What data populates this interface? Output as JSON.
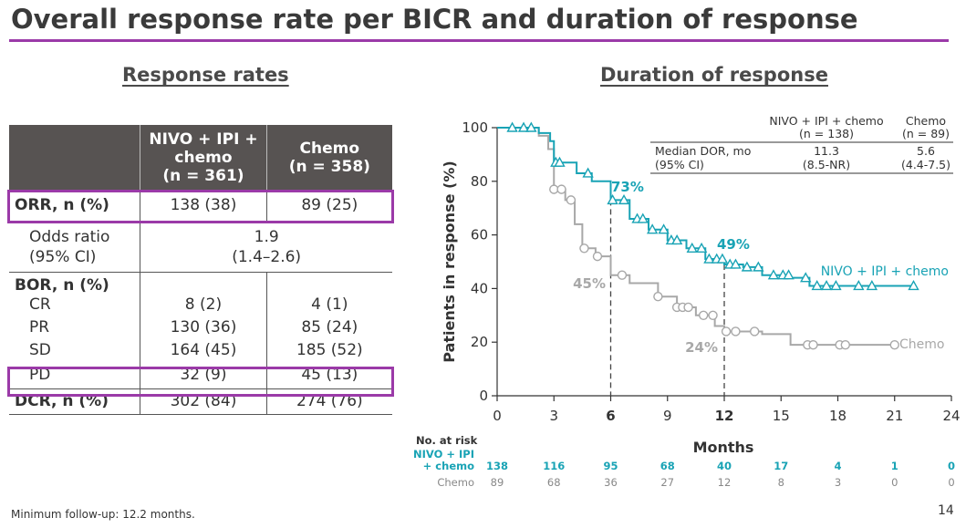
{
  "title": "Overall response rate per BICR and duration of response",
  "response_rates": {
    "heading": "Response rates",
    "header": {
      "col1": [
        "NIVO + IPI +",
        "chemo",
        "(n = 361)"
      ],
      "col2": [
        "Chemo",
        "(n = 358)"
      ]
    },
    "orr": {
      "label": "ORR, n (%)",
      "nivo": "138 (38)",
      "chemo": "89 (25)"
    },
    "odds_ratio": {
      "label1": "Odds ratio",
      "label2": "(95% CI)",
      "value1": "1.9",
      "value2": "(1.4–2.6)"
    },
    "bor": {
      "label": "BOR, n (%)",
      "rows": [
        {
          "label": "CR",
          "nivo": "8 (2)",
          "chemo": "4 (1)"
        },
        {
          "label": "PR",
          "nivo": "130 (36)",
          "chemo": "85 (24)"
        },
        {
          "label": "SD",
          "nivo": "164 (45)",
          "chemo": "185 (52)"
        },
        {
          "label": "PD",
          "nivo": "32 (9)",
          "chemo": "45 (13)"
        }
      ]
    },
    "dcr": {
      "label": "DCR, n (%)",
      "nivo": "302 (84)",
      "chemo": "274 (76)"
    }
  },
  "duration_of_response": {
    "heading": "Duration of response",
    "inset": {
      "col1": [
        "NIVO + IPI + chemo",
        "(n = 138)"
      ],
      "col2": [
        "Chemo",
        "(n = 89)"
      ],
      "row_label1": "Median DOR, mo",
      "row_label2": "(95% CI)",
      "nivo1": "11.3",
      "nivo2": "(8.5-NR)",
      "chemo1": "5.6",
      "chemo2": "(4.4-7.5)"
    },
    "annotations": {
      "nivo_6": "73%",
      "nivo_12": "49%",
      "chemo_6": "45%",
      "chemo_12": "24%"
    },
    "risk": {
      "title": "No. at risk",
      "nivo_label": [
        "NIVO + IPI",
        "+ chemo"
      ],
      "chemo_label": "Chemo",
      "nivo": [
        "138",
        "116",
        "95",
        "68",
        "40",
        "17",
        "4",
        "1",
        "0"
      ],
      "chemo": [
        "89",
        "68",
        "36",
        "27",
        "12",
        "8",
        "3",
        "0",
        "0"
      ]
    }
  },
  "chart_data": {
    "type": "line",
    "xlabel": "Months",
    "ylabel": "Patients in response (%)",
    "xlim": [
      0,
      24
    ],
    "ylim": [
      0,
      100
    ],
    "xticks": [
      0,
      3,
      6,
      9,
      12,
      15,
      18,
      21,
      24
    ],
    "yticks": [
      0,
      20,
      40,
      60,
      80,
      100
    ],
    "grid": false,
    "series": [
      {
        "name": "NIVO + IPI + chemo",
        "color": "#19a3b5",
        "x": [
          0,
          1.2,
          2.2,
          2.8,
          3.0,
          4.2,
          5.0,
          6.0,
          7.0,
          8.0,
          9.0,
          10.0,
          11.0,
          12.0,
          13.0,
          14.0,
          15.0,
          15.5,
          16.5,
          18.0,
          19.0,
          22.0
        ],
        "y": [
          100,
          100,
          98,
          95,
          87,
          83,
          80,
          73,
          66,
          62,
          58,
          55,
          51,
          49,
          48,
          45,
          45,
          44,
          41,
          41,
          41,
          41
        ],
        "censored_x": [
          0.8,
          1.4,
          1.8,
          3.1,
          3.3,
          4.8,
          6.1,
          6.7,
          7.4,
          7.7,
          8.2,
          8.8,
          9.2,
          9.5,
          10.3,
          10.8,
          11.2,
          11.6,
          11.9,
          12.3,
          12.6,
          13.2,
          13.8,
          14.6,
          15.1,
          15.4,
          16.3,
          16.9,
          17.4,
          17.9,
          19.1,
          19.8,
          22.0
        ]
      },
      {
        "name": "Chemo",
        "color": "#a8a8a8",
        "x": [
          0,
          2.2,
          2.7,
          3.0,
          3.6,
          4.1,
          4.5,
          5.2,
          6.0,
          7.0,
          8.5,
          9.5,
          10.5,
          11.5,
          12.0,
          14.0,
          15.5,
          21.0
        ],
        "y": [
          100,
          97,
          92,
          77,
          73,
          64,
          55,
          52,
          45,
          42,
          37,
          33,
          30,
          26,
          24,
          23,
          19,
          19
        ],
        "censored_x": [
          3.0,
          3.4,
          3.9,
          4.6,
          5.3,
          6.6,
          8.5,
          9.5,
          9.8,
          10.1,
          10.9,
          11.4,
          12.1,
          12.6,
          13.6,
          16.4,
          16.7,
          18.1,
          18.4,
          21.0
        ]
      }
    ]
  }
}
